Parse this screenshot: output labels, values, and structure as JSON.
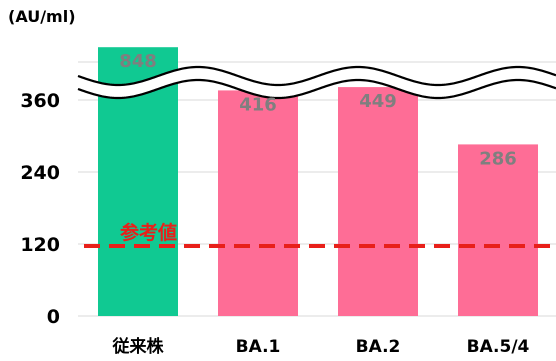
{
  "chart_data": {
    "type": "bar",
    "unit_label": "(AU/ml)",
    "categories": [
      "従来株",
      "BA.1",
      "BA.2",
      "BA.5/4"
    ],
    "values": [
      848,
      416,
      449,
      286
    ],
    "data_labels": [
      "848",
      "416",
      "449",
      "286"
    ],
    "bar_colors": [
      "#10c992",
      "#fe6d96",
      "#fe6d96",
      "#fe6d96"
    ],
    "y_ticks": [
      "0",
      "120",
      "240",
      "360"
    ],
    "y_tick_values": [
      0,
      120,
      240,
      360
    ],
    "axis_break": true,
    "gridlines": true,
    "reference_line": {
      "label": "参考値",
      "value": 120,
      "color": "#e8201a",
      "style": "dashed"
    }
  }
}
